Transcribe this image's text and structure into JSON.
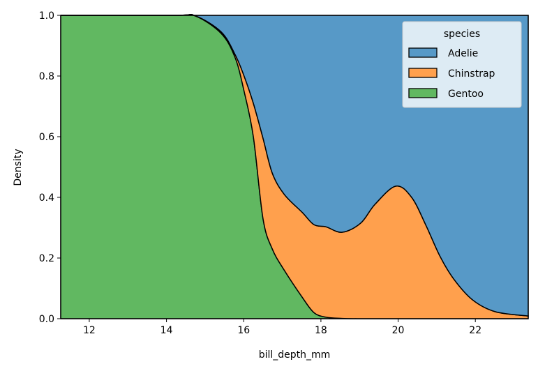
{
  "chart_data": {
    "type": "area",
    "stacking": "fill",
    "xlabel": "bill_depth_mm",
    "ylabel": "Density",
    "xlim": [
      11.26,
      23.37
    ],
    "ylim": [
      0.0,
      1.0
    ],
    "xticks": [
      "12",
      "14",
      "16",
      "18",
      "20",
      "22"
    ],
    "yticks": [
      "0.0",
      "0.2",
      "0.4",
      "0.6",
      "0.8",
      "1.0"
    ],
    "grid": false,
    "legend": {
      "title": "species",
      "placement": "top-right",
      "entries": [
        "Adelie",
        "Chinstrap",
        "Gentoo"
      ]
    },
    "x": [
      11.26,
      14.2,
      14.75,
      15.42,
      15.78,
      16.01,
      16.25,
      16.5,
      16.74,
      17.05,
      17.52,
      17.82,
      18.13,
      18.55,
      19.03,
      19.4,
      19.94,
      20.35,
      20.72,
      21.08,
      21.44,
      21.93,
      22.52,
      23.37
    ],
    "series": [
      {
        "name": "Adelie",
        "color": "#5799c7",
        "values": [
          0,
          0,
          0.002,
          0.055,
          0.13,
          0.2,
          0.29,
          0.405,
          0.52,
          0.59,
          0.65,
          0.69,
          0.697,
          0.715,
          0.685,
          0.623,
          0.563,
          0.6,
          0.692,
          0.793,
          0.869,
          0.938,
          0.977,
          0.991
        ]
      },
      {
        "name": "Chinstrap",
        "color": "#ffa04d",
        "values": [
          0,
          0,
          0,
          0.005,
          0.01,
          0.05,
          0.11,
          0.265,
          0.25,
          0.25,
          0.28,
          0.29,
          0.298,
          0.284,
          0.315,
          0.377,
          0.437,
          0.4,
          0.308,
          0.207,
          0.131,
          0.062,
          0.023,
          0.009
        ]
      },
      {
        "name": "Gentoo",
        "color": "#61b861",
        "values": [
          1,
          1,
          0.998,
          0.94,
          0.86,
          0.75,
          0.6,
          0.33,
          0.23,
          0.16,
          0.07,
          0.02,
          0.005,
          0.001,
          0,
          0,
          0,
          0,
          0,
          0,
          0,
          0,
          0,
          0
        ]
      }
    ]
  }
}
